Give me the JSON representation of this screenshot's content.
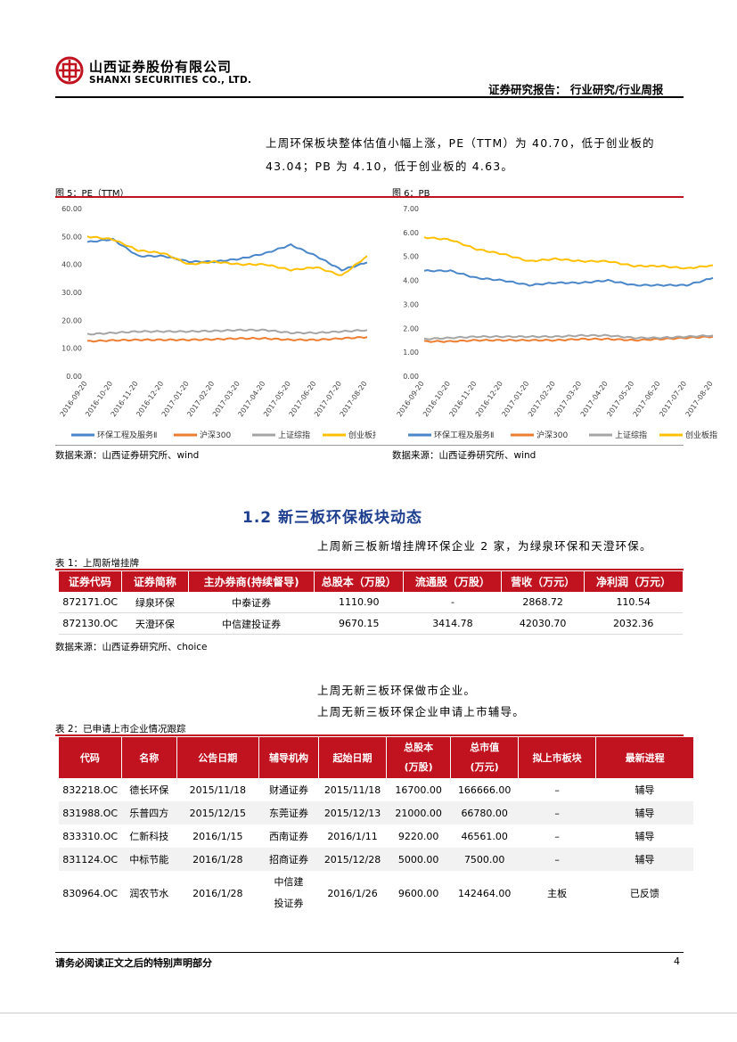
{
  "header": {
    "company_cn": "山西证券股份有限公司",
    "company_en": "SHANXI SECURITIES CO., LTD.",
    "report_type": "证券研究报告：  行业研究/行业周报"
  },
  "intro": {
    "line1": "上周环保板块整体估值小幅上涨，PE（TTM）为 40.70，低于创业板的",
    "line2": "43.04；PB 为 4.10，低于创业板的 4.63。"
  },
  "figures": [
    {
      "title": "图 5：PE（TTM）",
      "source": "数据来源：山西证券研究所、wind",
      "chart_data": {
        "type": "line",
        "title": "",
        "ylim": [
          0,
          60
        ],
        "yticks": [
          "0.00",
          "10.00",
          "20.00",
          "30.00",
          "40.00",
          "50.00",
          "60.00"
        ],
        "xticks": [
          "2016-09-20",
          "2016-10-20",
          "2016-11-20",
          "2016-12-20",
          "2017-01-20",
          "2017-02-20",
          "2017-03-20",
          "2017-04-20",
          "2017-05-20",
          "2017-06-20",
          "2017-07-20",
          "2017-08-20"
        ],
        "series": [
          {
            "name": "环保工程及服务Ⅱ",
            "color": "#4A86C8",
            "values": [
              48,
              49,
              43,
              43,
              41,
              41,
              42,
              44,
              47,
              43,
              38,
              40.7
            ]
          },
          {
            "name": "沪深300",
            "color": "#ED7D31",
            "values": [
              12.5,
              12.8,
              13,
              13,
              13,
              13.2,
              13.5,
              13.5,
              13,
              13,
              13.5,
              14
            ]
          },
          {
            "name": "上证综指",
            "color": "#A5A5A5",
            "values": [
              15,
              15.5,
              16,
              16,
              16,
              16.2,
              16.5,
              16.5,
              15.5,
              15.5,
              16,
              16.5
            ]
          },
          {
            "name": "创业板指",
            "color": "#FFC000",
            "values": [
              50,
              49,
              45,
              44,
              40,
              41,
              40,
              40,
              38,
              39,
              36,
              43.04
            ]
          }
        ]
      }
    },
    {
      "title": "图 6：PB",
      "source": "数据来源：山西证券研究所、wind",
      "chart_data": {
        "type": "line",
        "title": "",
        "ylim": [
          0,
          7
        ],
        "yticks": [
          "0.00",
          "1.00",
          "2.00",
          "3.00",
          "4.00",
          "5.00",
          "6.00",
          "7.00"
        ],
        "xticks": [
          "2016-09-20",
          "2016-10-20",
          "2016-11-20",
          "2016-12-20",
          "2017-01-20",
          "2017-02-20",
          "2017-03-20",
          "2017-04-20",
          "2017-05-20",
          "2017-06-20",
          "2017-07-20",
          "2017-08-20"
        ],
        "series": [
          {
            "name": "环保工程及服务Ⅱ",
            "color": "#4A86C8",
            "values": [
              4.4,
              4.4,
              4.1,
              4.0,
              3.8,
              3.9,
              3.9,
              4.0,
              3.8,
              3.8,
              3.8,
              4.1
            ]
          },
          {
            "name": "沪深300",
            "color": "#ED7D31",
            "values": [
              1.45,
              1.45,
              1.5,
              1.5,
              1.5,
              1.5,
              1.55,
              1.55,
              1.5,
              1.55,
              1.6,
              1.65
            ]
          },
          {
            "name": "上证综指",
            "color": "#A5A5A5",
            "values": [
              1.55,
              1.6,
              1.65,
              1.65,
              1.65,
              1.65,
              1.7,
              1.7,
              1.6,
              1.6,
              1.65,
              1.7
            ]
          },
          {
            "name": "创业板指",
            "color": "#FFC000",
            "values": [
              5.8,
              5.7,
              5.3,
              5.1,
              4.8,
              4.9,
              4.8,
              4.8,
              4.6,
              4.6,
              4.5,
              4.63
            ]
          }
        ]
      }
    }
  ],
  "section": {
    "title": "1.2 新三板环保板块动态",
    "para": "上周新三板新增挂牌环保企业 2 家，为绿泉环保和天澄环保。"
  },
  "table1": {
    "caption": "表 1：上周新增挂牌",
    "headers": [
      "证券代码",
      "证券简称",
      "主办券商(持续督导)",
      "总股本（万股）",
      "流通股（万股）",
      "营收（万元）",
      "净利润（万元）"
    ],
    "rows": [
      [
        "872171.OC",
        "绿泉环保",
        "中泰证券",
        "1110.90",
        "-",
        "2868.72",
        "110.54"
      ],
      [
        "872130.OC",
        "天澄环保",
        "中信建投证券",
        "9670.15",
        "3414.78",
        "42030.70",
        "2032.36"
      ]
    ],
    "source": "数据来源：山西证券研究所、choice"
  },
  "mid_text": {
    "line1": "上周无新三板环保做市企业。",
    "line2": "上周无新三板环保企业申请上市辅导。"
  },
  "table2": {
    "caption": "表 2：已申请上市企业情况跟踪",
    "headers": [
      "代码",
      "名称",
      "公告日期",
      "辅导机构",
      "起始日期",
      "总股本\n(万股)",
      "总市值\n(万元)",
      "拟上市板块",
      "最新进程"
    ],
    "rows": [
      [
        "832218.OC",
        "德长环保",
        "2015/11/18",
        "财通证券",
        "2015/11/18",
        "16700.00",
        "166666.00",
        "–",
        "辅导"
      ],
      [
        "831988.OC",
        "乐普四方",
        "2015/12/15",
        "东莞证券",
        "2015/12/13",
        "21000.00",
        "66780.00",
        "–",
        "辅导"
      ],
      [
        "833310.OC",
        "仁新科技",
        "2016/1/15",
        "西南证券",
        "2016/1/11",
        "9220.00",
        "46561.00",
        "–",
        "辅导"
      ],
      [
        "831124.OC",
        "中标节能",
        "2016/1/28",
        "招商证券",
        "2015/12/28",
        "5000.00",
        "7500.00",
        "–",
        "辅导"
      ],
      [
        "830964.OC",
        "润农节水",
        "2016/1/28",
        "中信建投证券",
        "2016/1/26",
        "9600.00",
        "142464.00",
        "主板",
        "已反馈"
      ]
    ]
  },
  "footer": {
    "disclaimer": "请务必阅读正文之后的特别声明部分",
    "page": "4"
  }
}
